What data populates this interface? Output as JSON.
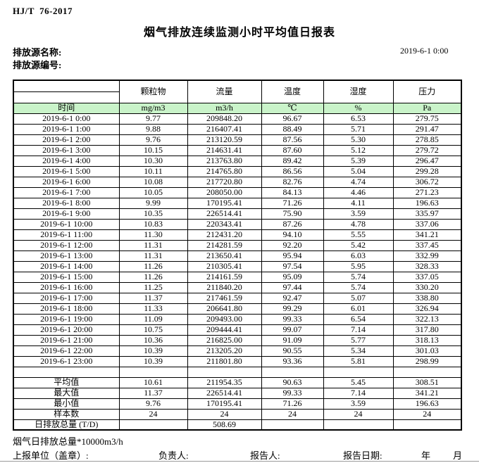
{
  "header": {
    "standard": "HJ/T  76-2017",
    "title": "烟气排放连续监测小时平均值日报表",
    "source_name_label": "排放源名称:",
    "source_code_label": "排放源编号:",
    "datetime": "2019-6-1 0:00"
  },
  "table": {
    "pollutant_headers": [
      "颗粒物",
      "流量",
      "温度",
      "湿度",
      "压力"
    ],
    "unit_row": [
      "时间",
      "mg/m3",
      "m3/h",
      "℃",
      "%",
      "Pa"
    ],
    "rows": [
      {
        "time": "2019-6-1 0:00",
        "values": [
          "9.77",
          "209848.20",
          "96.67",
          "6.53",
          "279.75"
        ]
      },
      {
        "time": "2019-6-1 1:00",
        "values": [
          "9.88",
          "216407.41",
          "88.49",
          "5.71",
          "291.47"
        ]
      },
      {
        "time": "2019-6-1 2:00",
        "values": [
          "9.76",
          "213120.59",
          "87.56",
          "5.30",
          "278.85"
        ]
      },
      {
        "time": "2019-6-1 3:00",
        "values": [
          "10.15",
          "214631.41",
          "87.60",
          "5.12",
          "279.72"
        ]
      },
      {
        "time": "2019-6-1 4:00",
        "values": [
          "10.30",
          "213763.80",
          "89.42",
          "5.39",
          "296.47"
        ]
      },
      {
        "time": "2019-6-1 5:00",
        "values": [
          "10.11",
          "214765.80",
          "86.56",
          "5.04",
          "299.28"
        ]
      },
      {
        "time": "2019-6-1 6:00",
        "values": [
          "10.08",
          "217720.80",
          "82.76",
          "4.74",
          "306.72"
        ]
      },
      {
        "time": "2019-6-1 7:00",
        "values": [
          "10.05",
          "208050.00",
          "84.13",
          "4.46",
          "271.23"
        ]
      },
      {
        "time": "2019-6-1 8:00",
        "values": [
          "9.99",
          "170195.41",
          "71.26",
          "4.11",
          "196.63"
        ]
      },
      {
        "time": "2019-6-1 9:00",
        "values": [
          "10.35",
          "226514.41",
          "75.90",
          "3.59",
          "335.97"
        ]
      },
      {
        "time": "2019-6-1 10:00",
        "values": [
          "10.83",
          "220343.41",
          "87.26",
          "4.78",
          "337.06"
        ]
      },
      {
        "time": "2019-6-1 11:00",
        "values": [
          "11.30",
          "212431.20",
          "94.10",
          "5.55",
          "341.21"
        ]
      },
      {
        "time": "2019-6-1 12:00",
        "values": [
          "11.31",
          "214281.59",
          "92.20",
          "5.42",
          "337.45"
        ]
      },
      {
        "time": "2019-6-1 13:00",
        "values": [
          "11.31",
          "213650.41",
          "95.94",
          "6.03",
          "332.99"
        ]
      },
      {
        "time": "2019-6-1 14:00",
        "values": [
          "11.26",
          "210305.41",
          "97.54",
          "5.95",
          "328.33"
        ]
      },
      {
        "time": "2019-6-1 15:00",
        "values": [
          "11.26",
          "214161.59",
          "95.09",
          "5.74",
          "337.05"
        ]
      },
      {
        "time": "2019-6-1 16:00",
        "values": [
          "11.25",
          "211840.20",
          "97.44",
          "5.74",
          "330.20"
        ]
      },
      {
        "time": "2019-6-1 17:00",
        "values": [
          "11.37",
          "217461.59",
          "92.47",
          "5.07",
          "338.80"
        ]
      },
      {
        "time": "2019-6-1 18:00",
        "values": [
          "11.33",
          "206641.80",
          "99.29",
          "6.01",
          "326.94"
        ]
      },
      {
        "time": "2019-6-1 19:00",
        "values": [
          "11.09",
          "209493.00",
          "99.33",
          "6.54",
          "322.13"
        ]
      },
      {
        "time": "2019-6-1 20:00",
        "values": [
          "10.75",
          "209444.41",
          "99.07",
          "7.14",
          "317.80"
        ]
      },
      {
        "time": "2019-6-1 21:00",
        "values": [
          "10.36",
          "216825.00",
          "91.09",
          "5.77",
          "318.13"
        ]
      },
      {
        "time": "2019-6-1 22:00",
        "values": [
          "10.39",
          "213205.20",
          "90.55",
          "5.34",
          "301.03"
        ]
      },
      {
        "time": "2019-6-1 23:00",
        "values": [
          "10.39",
          "211801.80",
          "93.36",
          "5.81",
          "298.99"
        ]
      }
    ],
    "summary_rows": [
      {
        "label": "",
        "values": [
          "",
          "",
          "",
          "",
          ""
        ]
      },
      {
        "label": "平均值",
        "values": [
          "10.61",
          "211954.35",
          "90.63",
          "5.45",
          "308.51"
        ]
      },
      {
        "label": "最大值",
        "values": [
          "11.37",
          "226514.41",
          "99.33",
          "7.14",
          "341.21"
        ]
      },
      {
        "label": "最小值",
        "values": [
          "9.76",
          "170195.41",
          "71.26",
          "3.59",
          "196.63"
        ]
      },
      {
        "label": "样本数",
        "values": [
          "24",
          "24",
          "24",
          "24",
          "24"
        ]
      },
      {
        "label": "日排放总量 (T/D)",
        "values": [
          "",
          "508.69",
          "",
          "",
          ""
        ]
      }
    ]
  },
  "footer": {
    "note": "烟气日排放总量*10000m3/h",
    "unit_label": "上报单位（盖章）:",
    "responsible_label": "负责人:",
    "reporter_label": "报告人:",
    "report_date_label": "报告日期:",
    "year_label": "年",
    "month_label": "月"
  }
}
